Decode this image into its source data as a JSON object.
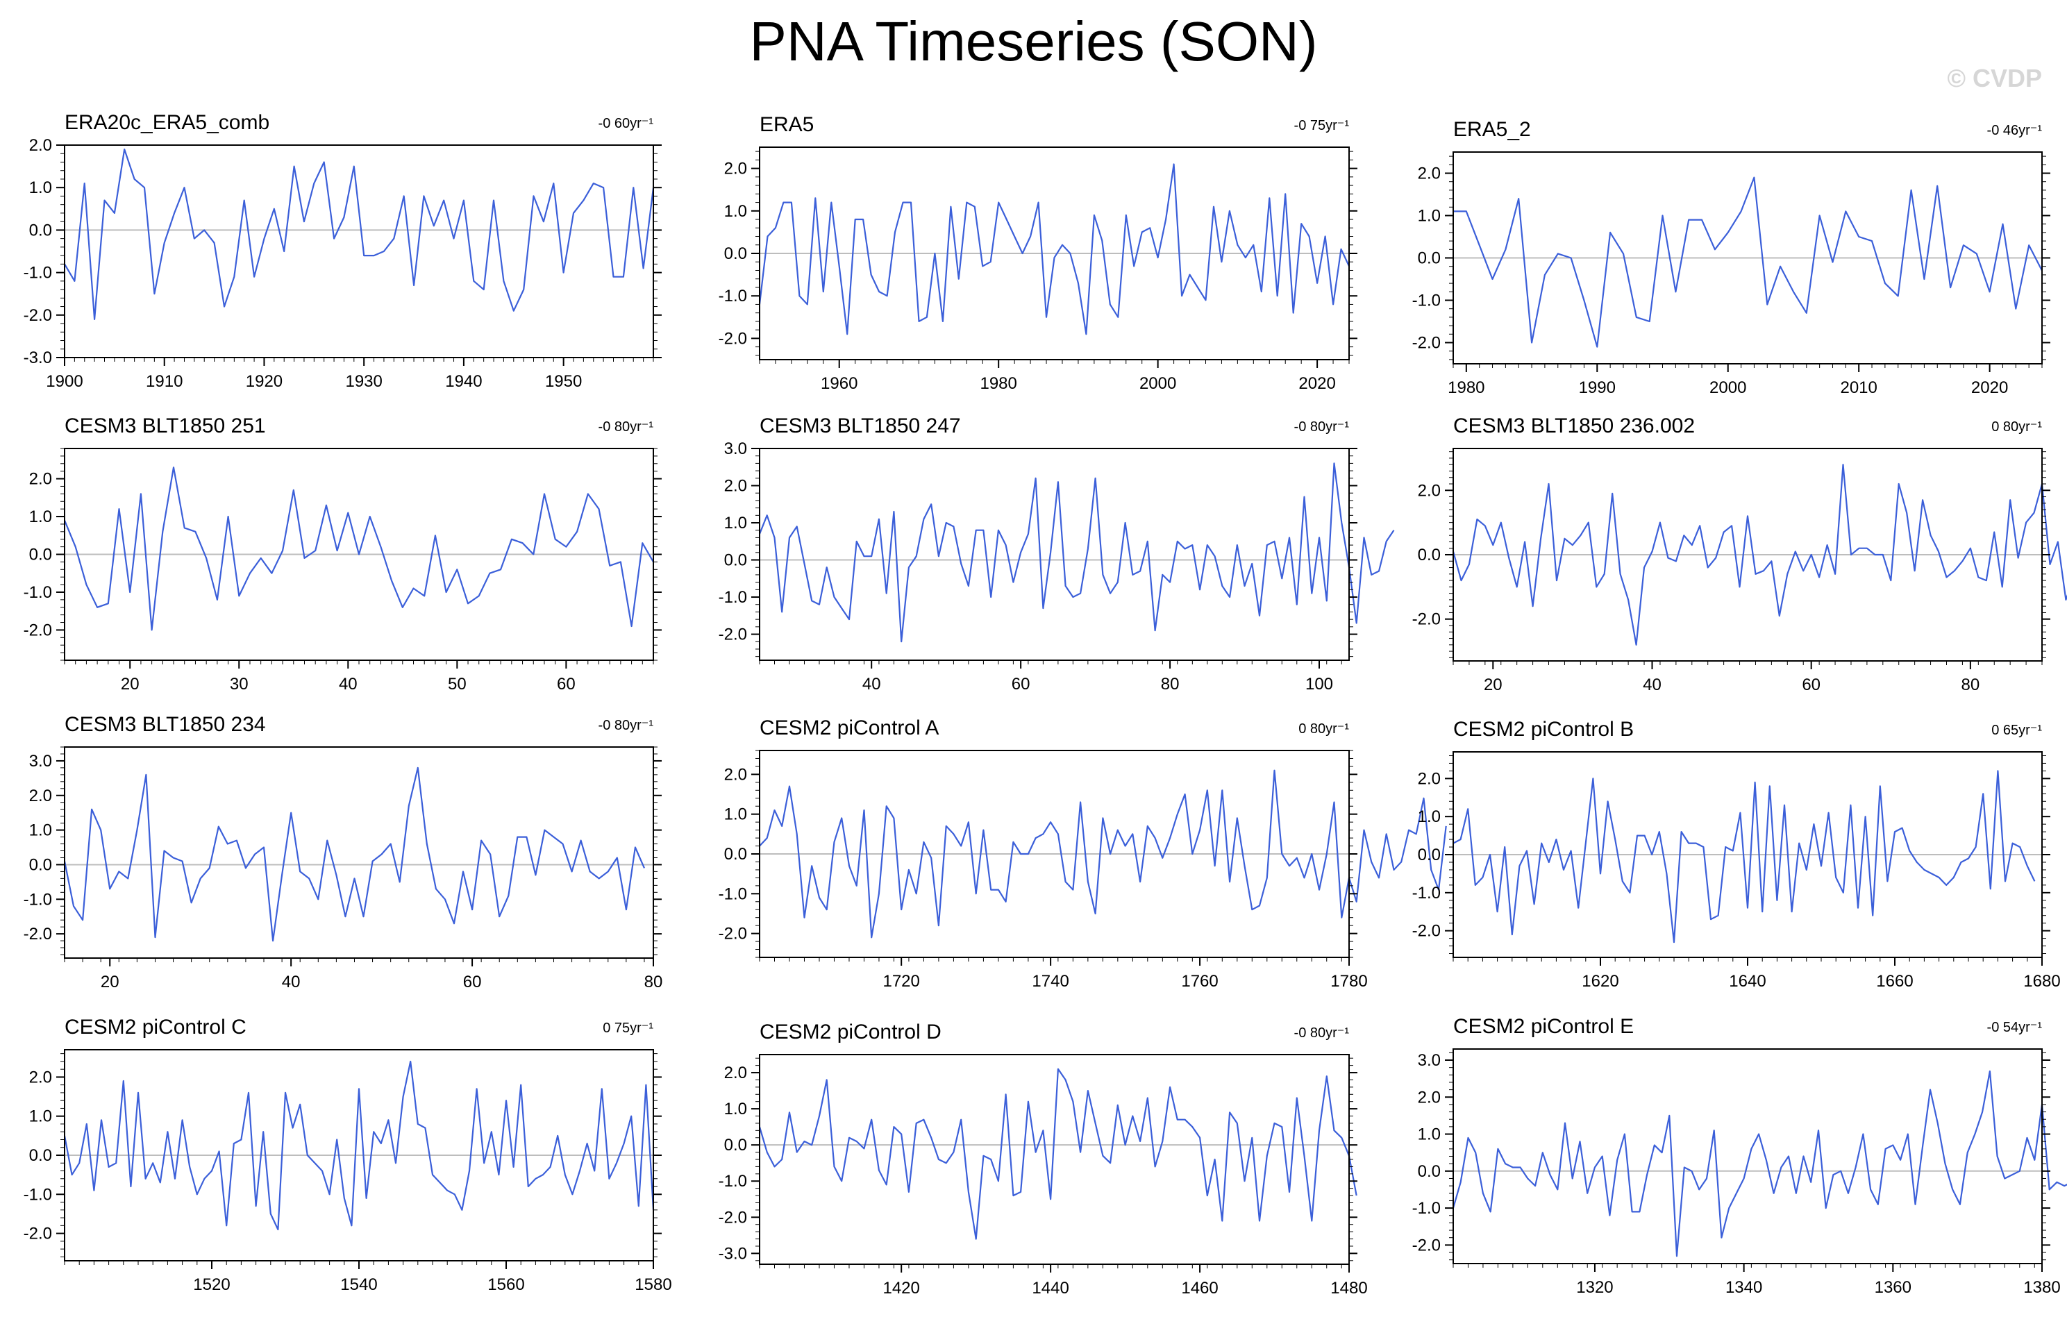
{
  "title": "PNA Timeseries (SON)",
  "watermark": "© CVDP",
  "colors": {
    "line": "#3b5fd9",
    "zero_line": "#bdbdbd",
    "axis": "#000000",
    "background": "#ffffff"
  },
  "chart_data": [
    {
      "type": "line",
      "title": "ERA20c_ERA5_comb",
      "trend": "-0 60yr⁻¹",
      "xlim": [
        1900,
        1959
      ],
      "ylim": [
        -3.0,
        2.0
      ],
      "xticks": [
        1900,
        1910,
        1920,
        1930,
        1940,
        1950
      ],
      "yticks": [
        -3.0,
        -2.0,
        -1.0,
        0.0,
        1.0,
        2.0
      ],
      "x_start": 1900,
      "values": [
        -0.8,
        -1.2,
        1.1,
        -2.1,
        0.7,
        0.4,
        1.9,
        1.2,
        1.0,
        -1.5,
        -0.3,
        0.4,
        1.0,
        -0.2,
        0.0,
        -0.3,
        -1.8,
        -1.1,
        0.7,
        -1.1,
        -0.2,
        0.5,
        -0.5,
        1.5,
        0.2,
        1.1,
        1.6,
        -0.2,
        0.3,
        1.5,
        -0.6,
        -0.6,
        -0.5,
        -0.2,
        0.8,
        -1.3,
        0.8,
        0.1,
        0.7,
        -0.2,
        0.7,
        -1.2,
        -1.4,
        0.7,
        -1.2,
        -1.9,
        -1.4,
        0.8,
        0.2,
        1.1,
        -1.0,
        0.4,
        0.7,
        1.1,
        1.0,
        -1.1,
        -1.1,
        1.0,
        -0.9,
        1.0
      ]
    },
    {
      "type": "line",
      "title": "ERA5",
      "trend": "-0 75yr⁻¹",
      "xlim": [
        1950,
        2024
      ],
      "ylim": [
        -2.5,
        2.5
      ],
      "xticks": [
        1960,
        1980,
        2000,
        2020
      ],
      "yticks": [
        -2.0,
        -1.0,
        0.0,
        1.0,
        2.0
      ],
      "x_start": 1950,
      "values": [
        -1.2,
        0.4,
        0.6,
        1.2,
        1.2,
        -1.0,
        -1.2,
        1.3,
        -0.9,
        1.2,
        -0.3,
        -1.9,
        0.8,
        0.8,
        -0.5,
        -0.9,
        -1.0,
        0.5,
        1.2,
        1.2,
        -1.6,
        -1.5,
        0.0,
        -1.6,
        1.1,
        -0.6,
        1.2,
        1.1,
        -0.3,
        -0.2,
        1.2,
        0.8,
        0.4,
        0.0,
        0.4,
        1.2,
        -1.5,
        -0.1,
        0.2,
        0.0,
        -0.7,
        -1.9,
        0.9,
        0.3,
        -1.2,
        -1.5,
        0.9,
        -0.3,
        0.5,
        0.6,
        -0.1,
        0.8,
        2.1,
        -1.0,
        -0.5,
        -0.8,
        -1.1,
        1.1,
        -0.2,
        1.0,
        0.2,
        -0.1,
        0.2,
        -0.9,
        1.3,
        -1.0,
        1.4,
        -1.4,
        0.7,
        0.4,
        -0.7,
        0.4,
        -1.2,
        0.1,
        -0.3
      ]
    },
    {
      "type": "line",
      "title": "ERA5_2",
      "trend": "-0 46yr⁻¹",
      "xlim": [
        1979,
        2024
      ],
      "ylim": [
        -2.5,
        2.5
      ],
      "xticks": [
        1980,
        1990,
        2000,
        2010,
        2020
      ],
      "yticks": [
        -2.0,
        -1.0,
        0.0,
        1.0,
        2.0
      ],
      "x_start": 1979,
      "values": [
        1.1,
        1.1,
        0.3,
        -0.5,
        0.2,
        1.4,
        -2.0,
        -0.4,
        0.1,
        0.0,
        -1.0,
        -2.1,
        0.6,
        0.1,
        -1.4,
        -1.5,
        1.0,
        -0.8,
        0.9,
        0.9,
        0.2,
        0.6,
        1.1,
        1.9,
        -1.1,
        -0.2,
        -0.8,
        -1.3,
        1.0,
        -0.1,
        1.1,
        0.5,
        0.4,
        -0.6,
        -0.9,
        1.6,
        -0.5,
        1.7,
        -0.7,
        0.3,
        0.1,
        -0.8,
        0.8,
        -1.2,
        0.3,
        -0.3
      ]
    },
    {
      "type": "line",
      "title": "CESM3 BLT1850 251",
      "trend": "-0 80yr⁻¹",
      "xlim": [
        14,
        68
      ],
      "ylim": [
        -2.8,
        2.8
      ],
      "xticks": [
        20,
        30,
        40,
        50,
        60
      ],
      "yticks": [
        -2.0,
        -1.0,
        0.0,
        1.0,
        2.0
      ],
      "x_start": 14,
      "values": [
        0.9,
        0.2,
        -0.8,
        -1.4,
        -1.3,
        1.2,
        -1.0,
        1.6,
        -2.0,
        0.6,
        2.3,
        0.7,
        0.6,
        -0.1,
        -1.2,
        1.0,
        -1.1,
        -0.5,
        -0.1,
        -0.5,
        0.1,
        1.7,
        -0.1,
        0.1,
        1.3,
        0.1,
        1.1,
        0.0,
        1.0,
        0.2,
        -0.7,
        -1.4,
        -0.9,
        -1.1,
        0.5,
        -1.0,
        -0.4,
        -1.3,
        -1.1,
        -0.5,
        -0.4,
        0.4,
        0.3,
        0.0,
        1.6,
        0.4,
        0.2,
        0.6,
        1.6,
        1.2,
        -0.3,
        -0.2,
        -1.9,
        0.3,
        -0.2
      ]
    },
    {
      "type": "line",
      "title": "CESM3 BLT1850 247",
      "trend": "-0 80yr⁻¹",
      "xlim": [
        25,
        104
      ],
      "ylim": [
        -2.7,
        3.0
      ],
      "xticks": [
        40,
        60,
        80,
        100
      ],
      "yticks": [
        -2.0,
        -1.0,
        0.0,
        1.0,
        2.0,
        3.0
      ],
      "x_start": 25,
      "values": [
        0.7,
        1.2,
        0.6,
        -1.4,
        0.6,
        0.9,
        -0.1,
        -1.1,
        -1.2,
        -0.2,
        -1.0,
        -1.3,
        -1.6,
        0.5,
        0.1,
        0.1,
        1.1,
        -0.9,
        1.3,
        -2.2,
        -0.2,
        0.1,
        1.1,
        1.5,
        0.1,
        1.0,
        0.9,
        -0.1,
        -0.7,
        0.8,
        0.8,
        -1.0,
        0.8,
        0.4,
        -0.6,
        0.2,
        0.7,
        2.2,
        -1.3,
        0.2,
        2.1,
        -0.7,
        -1.0,
        -0.9,
        0.3,
        2.2,
        -0.4,
        -0.9,
        -0.6,
        1.0,
        -0.4,
        -0.3,
        0.5,
        -1.9,
        -0.4,
        -0.6,
        0.5,
        0.3,
        0.4,
        -0.8,
        0.4,
        0.1,
        -0.7,
        -1.0,
        0.4,
        -0.7,
        -0.1,
        -1.5,
        0.4,
        0.5,
        -0.5,
        0.6,
        -1.2,
        1.7,
        -0.9,
        0.6,
        -1.1,
        2.6,
        1.0,
        -0.2,
        -1.7,
        0.6,
        -0.4,
        -0.3,
        0.5,
        0.8
      ]
    },
    {
      "type": "line",
      "title": "CESM3 BLT1850 236.002",
      "trend": "0 80yr⁻¹",
      "xlim": [
        15,
        89
      ],
      "ylim": [
        -3.3,
        3.3
      ],
      "xticks": [
        20,
        40,
        60,
        80
      ],
      "yticks": [
        -2.0,
        0.0,
        2.0
      ],
      "x_start": 15,
      "values": [
        0.1,
        -0.8,
        -0.3,
        1.1,
        0.9,
        0.3,
        1.0,
        -0.1,
        -1.0,
        0.4,
        -1.6,
        0.5,
        2.2,
        -0.8,
        0.5,
        0.3,
        0.6,
        1.0,
        -1.0,
        -0.6,
        1.9,
        -0.6,
        -1.4,
        -2.8,
        -0.4,
        0.1,
        1.0,
        -0.1,
        -0.2,
        0.6,
        0.3,
        0.9,
        -0.4,
        -0.1,
        0.7,
        0.9,
        -1.0,
        1.2,
        -0.6,
        -0.5,
        -0.2,
        -1.9,
        -0.6,
        0.1,
        -0.5,
        0.0,
        -0.7,
        0.3,
        -0.6,
        2.8,
        0.0,
        0.2,
        0.2,
        0.0,
        0.0,
        -0.8,
        2.2,
        1.3,
        -0.5,
        1.7,
        0.6,
        0.1,
        -0.7,
        -0.5,
        -0.2,
        0.2,
        -0.7,
        -0.8,
        0.7,
        -1.0,
        1.7,
        -0.1,
        1.0,
        1.3,
        2.2,
        -0.3,
        0.4,
        -1.4,
        -0.7,
        -1.0,
        -0.2,
        -0.3
      ]
    },
    {
      "type": "line",
      "title": "CESM3 BLT1850 234",
      "trend": "-0 80yr⁻¹",
      "xlim": [
        15,
        80
      ],
      "ylim": [
        -2.7,
        3.4
      ],
      "xticks": [
        20,
        40,
        60,
        80
      ],
      "yticks": [
        -2.0,
        -1.0,
        0.0,
        1.0,
        2.0,
        3.0
      ],
      "x_start": 15,
      "values": [
        0.1,
        -1.2,
        -1.6,
        1.6,
        1.0,
        -0.7,
        -0.2,
        -0.4,
        1.0,
        2.6,
        -2.1,
        0.4,
        0.2,
        0.1,
        -1.1,
        -0.4,
        -0.1,
        1.1,
        0.6,
        0.7,
        -0.1,
        0.3,
        0.5,
        -2.2,
        -0.3,
        1.5,
        -0.2,
        -0.4,
        -1.0,
        0.7,
        -0.3,
        -1.5,
        -0.4,
        -1.5,
        0.1,
        0.3,
        0.6,
        -0.5,
        1.7,
        2.8,
        0.6,
        -0.7,
        -1.0,
        -1.7,
        -0.2,
        -1.3,
        0.7,
        0.3,
        -1.5,
        -0.9,
        0.8,
        0.8,
        -0.3,
        1.0,
        0.8,
        0.6,
        -0.2,
        0.7,
        -0.2,
        -0.4,
        -0.2,
        0.2,
        -1.3,
        0.5,
        -0.1
      ]
    },
    {
      "type": "line",
      "title": "CESM2 piControl A",
      "trend": "0 80yr⁻¹",
      "xlim": [
        1701,
        1780
      ],
      "ylim": [
        -2.6,
        2.6
      ],
      "xticks": [
        1720,
        1740,
        1760,
        1780
      ],
      "yticks": [
        -2.0,
        -1.0,
        0.0,
        1.0,
        2.0
      ],
      "x_start": 1701,
      "values": [
        0.2,
        0.4,
        1.1,
        0.7,
        1.7,
        0.5,
        -1.6,
        -0.3,
        -1.1,
        -1.4,
        0.3,
        0.9,
        -0.3,
        -0.8,
        1.1,
        -2.1,
        -1.0,
        1.2,
        0.9,
        -1.4,
        -0.4,
        -1.0,
        0.3,
        -0.1,
        -1.8,
        0.7,
        0.5,
        0.2,
        0.8,
        -1.0,
        0.6,
        -0.9,
        -0.9,
        -1.2,
        0.3,
        0.0,
        0.0,
        0.4,
        0.5,
        0.8,
        0.5,
        -0.7,
        -0.9,
        1.3,
        -0.7,
        -1.5,
        0.9,
        0.0,
        0.6,
        0.2,
        0.5,
        -0.7,
        0.7,
        0.4,
        -0.1,
        0.4,
        1.0,
        1.5,
        0.0,
        0.6,
        1.6,
        -0.3,
        1.6,
        -0.7,
        0.9,
        -0.3,
        -1.4,
        -1.3,
        -0.6,
        2.1,
        0.0,
        -0.3,
        -0.1,
        -0.6,
        0.0,
        -0.9,
        0.0,
        1.3,
        -1.6,
        -0.6,
        -1.2,
        0.6,
        -0.2,
        -0.6,
        0.5,
        -0.4,
        -0.2,
        0.6,
        0.5,
        1.4,
        -0.4,
        -0.9,
        0.7
      ]
    },
    {
      "type": "line",
      "title": "CESM2 piControl B",
      "trend": "0 65yr⁻¹",
      "xlim": [
        1600,
        1680
      ],
      "ylim": [
        -2.7,
        2.7
      ],
      "xticks": [
        1620,
        1640,
        1660,
        1680
      ],
      "yticks": [
        -2.0,
        -1.0,
        0.0,
        1.0,
        2.0
      ],
      "x_start": 1600,
      "values": [
        0.3,
        0.4,
        1.2,
        -0.8,
        -0.6,
        0.0,
        -1.5,
        0.2,
        -2.1,
        -0.3,
        0.1,
        -1.3,
        0.3,
        -0.2,
        0.4,
        -0.4,
        0.1,
        -1.4,
        0.3,
        2.0,
        -0.5,
        1.4,
        0.4,
        -0.7,
        -1.0,
        0.5,
        0.5,
        0.0,
        0.6,
        -0.5,
        -2.3,
        0.6,
        0.3,
        0.3,
        0.2,
        -1.7,
        -1.6,
        0.2,
        0.1,
        1.1,
        -1.4,
        1.9,
        -1.5,
        1.8,
        -1.2,
        1.3,
        -1.5,
        0.3,
        -0.4,
        0.8,
        -0.3,
        1.1,
        -0.6,
        -1.0,
        1.3,
        -1.4,
        1.0,
        -1.6,
        1.8,
        -0.7,
        0.6,
        0.7,
        0.1,
        -0.2,
        -0.4,
        -0.5,
        -0.6,
        -0.8,
        -0.6,
        -0.2,
        -0.1,
        0.2,
        1.6,
        -0.9,
        2.2,
        -0.7,
        0.3,
        0.2,
        -0.3,
        -0.7
      ]
    },
    {
      "type": "line",
      "title": "CESM2 piControl C",
      "trend": "0 75yr⁻¹",
      "xlim": [
        1500,
        1580
      ],
      "ylim": [
        -2.7,
        2.7
      ],
      "xticks": [
        1520,
        1540,
        1560,
        1580
      ],
      "yticks": [
        -2.0,
        -1.0,
        0.0,
        1.0,
        2.0
      ],
      "x_start": 1500,
      "values": [
        0.5,
        -0.5,
        -0.2,
        0.8,
        -0.9,
        0.9,
        -0.3,
        -0.2,
        1.9,
        -0.8,
        1.6,
        -0.6,
        -0.2,
        -0.7,
        0.6,
        -0.6,
        0.9,
        -0.3,
        -1.0,
        -0.6,
        -0.4,
        0.1,
        -1.8,
        0.3,
        0.4,
        1.6,
        -1.3,
        0.6,
        -1.5,
        -1.9,
        1.6,
        0.7,
        1.3,
        0.0,
        -0.2,
        -0.4,
        -1.0,
        0.4,
        -1.1,
        -1.8,
        1.7,
        -1.1,
        0.6,
        0.3,
        0.9,
        -0.2,
        1.5,
        2.4,
        0.8,
        0.7,
        -0.5,
        -0.7,
        -0.9,
        -1.0,
        -1.4,
        -0.4,
        1.7,
        -0.2,
        0.6,
        -0.5,
        1.4,
        -0.3,
        1.8,
        -0.8,
        -0.6,
        -0.5,
        -0.3,
        0.5,
        -0.5,
        -1.0,
        -0.4,
        0.3,
        -0.4,
        1.7,
        -0.6,
        -0.2,
        0.3,
        1.0,
        -1.3,
        1.8,
        -1.4
      ]
    },
    {
      "type": "line",
      "title": "CESM2 piControl D",
      "trend": "-0 80yr⁻¹",
      "xlim": [
        1401,
        1480
      ],
      "ylim": [
        -3.3,
        2.5
      ],
      "xticks": [
        1420,
        1440,
        1460,
        1480
      ],
      "yticks": [
        -3.0,
        -2.0,
        -1.0,
        0.0,
        1.0,
        2.0
      ],
      "x_start": 1401,
      "values": [
        0.5,
        -0.2,
        -0.6,
        -0.4,
        0.9,
        -0.2,
        0.1,
        0.0,
        0.8,
        1.8,
        -0.6,
        -1.0,
        0.2,
        0.1,
        -0.1,
        0.7,
        -0.7,
        -1.1,
        0.5,
        0.3,
        -1.3,
        0.6,
        0.7,
        0.2,
        -0.4,
        -0.5,
        -0.2,
        0.7,
        -1.3,
        -2.6,
        -0.3,
        -0.4,
        -1.0,
        1.4,
        -1.4,
        -1.3,
        1.2,
        -0.2,
        0.4,
        -1.5,
        2.1,
        1.8,
        1.2,
        -0.2,
        1.5,
        0.6,
        -0.3,
        -0.5,
        1.1,
        0.0,
        0.8,
        0.1,
        1.3,
        -0.6,
        0.1,
        1.6,
        0.7,
        0.7,
        0.5,
        0.2,
        -1.4,
        -0.4,
        -2.1,
        0.9,
        0.6,
        -1.0,
        0.2,
        -2.1,
        -0.3,
        0.6,
        0.5,
        -1.3,
        1.3,
        -0.3,
        -2.1,
        0.4,
        1.9,
        0.4,
        0.2,
        -0.3,
        -1.4
      ]
    },
    {
      "type": "line",
      "title": "CESM2 piControl E",
      "trend": "-0 54yr⁻¹",
      "xlim": [
        1301,
        1380
      ],
      "ylim": [
        -2.5,
        3.3
      ],
      "xticks": [
        1320,
        1340,
        1360,
        1380
      ],
      "yticks": [
        -2.0,
        -1.0,
        0.0,
        1.0,
        2.0,
        3.0
      ],
      "x_start": 1301,
      "values": [
        -1.0,
        -0.3,
        0.9,
        0.5,
        -0.6,
        -1.1,
        0.6,
        0.2,
        0.1,
        0.1,
        -0.2,
        -0.4,
        0.5,
        -0.1,
        -0.5,
        1.3,
        -0.2,
        0.8,
        -0.6,
        0.1,
        0.4,
        -1.2,
        0.3,
        1.0,
        -1.1,
        -1.1,
        -0.1,
        0.7,
        0.5,
        1.5,
        -2.3,
        0.1,
        0.0,
        -0.5,
        -0.2,
        1.1,
        -1.8,
        -1.0,
        -0.6,
        -0.2,
        0.6,
        1.0,
        0.3,
        -0.6,
        0.1,
        0.4,
        -0.6,
        0.4,
        -0.3,
        1.1,
        -1.0,
        -0.1,
        0.0,
        -0.6,
        0.1,
        1.0,
        -0.5,
        -0.9,
        0.6,
        0.7,
        0.3,
        1.0,
        -0.9,
        0.7,
        2.2,
        1.3,
        0.2,
        -0.5,
        -0.9,
        0.5,
        1.0,
        1.6,
        2.7,
        0.4,
        -0.2,
        -0.1,
        0.0,
        0.9,
        0.3,
        1.8,
        -0.5,
        -0.3,
        -0.4,
        -0.3
      ]
    }
  ]
}
